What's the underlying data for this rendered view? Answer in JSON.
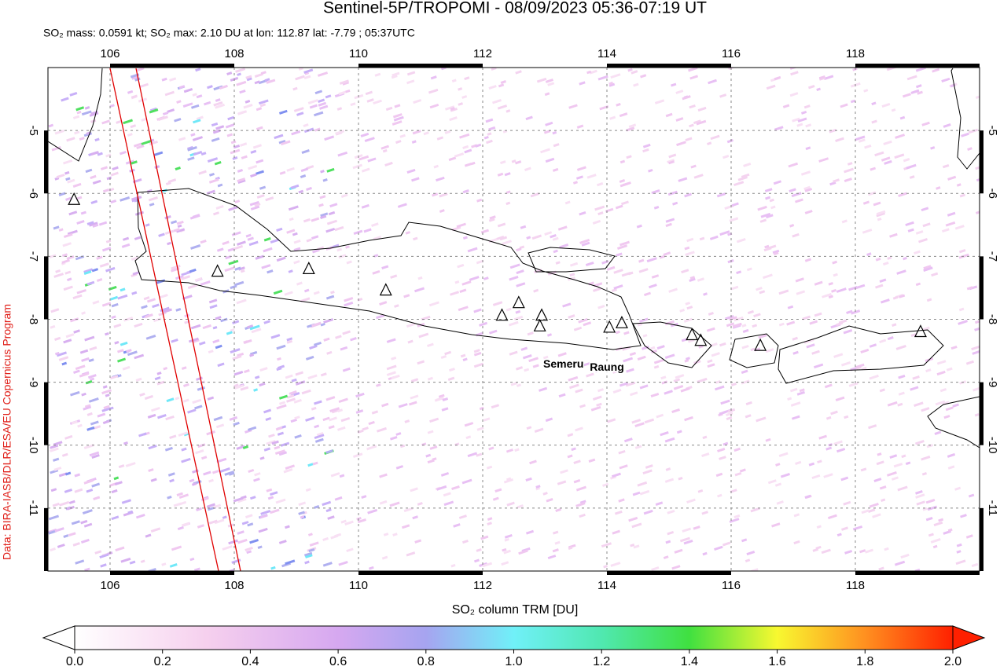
{
  "header": {
    "title": "Sentinel-5P/TROPOMI - 08/09/2023 05:36-07:19 UT",
    "subtitle": "SO₂ mass: 0.0591 kt; SO₂ max: 2.10 DU at lon: 112.87 lat: -7.79 ; 05:37UTC"
  },
  "map": {
    "lonlim": [
      105,
      120
    ],
    "latlim": [
      -12,
      -4
    ],
    "lon_ticks": [
      106,
      108,
      110,
      112,
      114,
      116,
      118
    ],
    "lat_ticks": [
      -5,
      -6,
      -7,
      -8,
      -9,
      -10,
      -11
    ],
    "volcanoes": [
      {
        "lon": 105.42,
        "lat": -6.1
      },
      {
        "lon": 107.73,
        "lat": -7.24
      },
      {
        "lon": 109.2,
        "lat": -7.2
      },
      {
        "lon": 110.44,
        "lat": -7.54
      },
      {
        "lon": 112.31,
        "lat": -7.94
      },
      {
        "lon": 112.58,
        "lat": -7.74
      },
      {
        "lon": 112.95,
        "lat": -7.94
      },
      {
        "lon": 112.92,
        "lat": -8.11
      },
      {
        "lon": 114.04,
        "lat": -8.13
      },
      {
        "lon": 114.24,
        "lat": -8.06
      },
      {
        "lon": 115.37,
        "lat": -8.25
      },
      {
        "lon": 115.51,
        "lat": -8.34
      },
      {
        "lon": 116.47,
        "lat": -8.42
      },
      {
        "lon": 119.05,
        "lat": -8.2
      }
    ],
    "volcano_labels": [
      {
        "text": "Semeru",
        "lon": 113.3,
        "lat": -8.72
      },
      {
        "text": "Raung",
        "lon": 114.0,
        "lat": -8.77
      }
    ],
    "credit": "Data: BIRA-IASB/DLR/ESA/EU Copernicus Program"
  },
  "colorbar": {
    "label": "SO₂ column TRM [DU]",
    "ticks": [
      {
        "value": 0,
        "label": "0.0"
      },
      {
        "value": 0.2,
        "label": "0.2"
      },
      {
        "value": 0.4,
        "label": "0.4"
      },
      {
        "value": 0.6,
        "label": "0.6"
      },
      {
        "value": 0.8,
        "label": "0.8"
      },
      {
        "value": 1,
        "label": "1.0"
      },
      {
        "value": 1.2,
        "label": "1.2"
      },
      {
        "value": 1.4,
        "label": "1.4"
      },
      {
        "value": 1.6,
        "label": "1.6"
      },
      {
        "value": 1.8,
        "label": "1.8"
      },
      {
        "value": 2,
        "label": "2.0"
      }
    ]
  }
}
